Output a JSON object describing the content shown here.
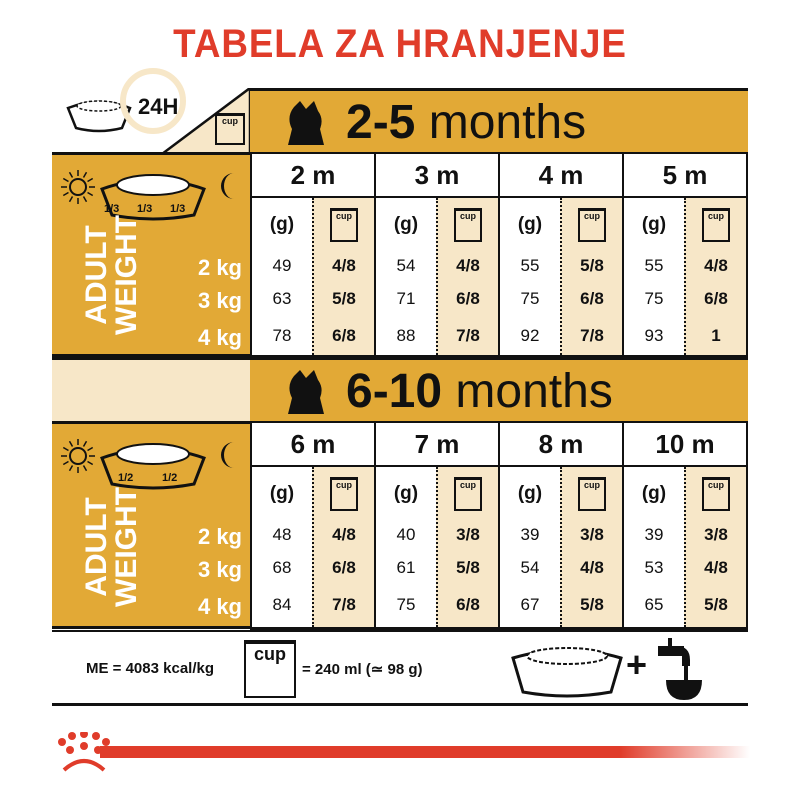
{
  "title": "TABELA ZA HRANJENJE",
  "daily_label": "24H",
  "cup_label": "cup",
  "grams_label": "(g)",
  "adult_weight": [
    "ADULT",
    "WEIGHT"
  ],
  "weights": [
    "2 kg",
    "3 kg",
    "4 kg"
  ],
  "colors": {
    "gold": "#E2A936",
    "cream": "#F7E7C8",
    "red": "#E03C2A"
  },
  "sections": [
    {
      "age_bold": "2-5",
      "age_rest": " months",
      "meal_fractions": [
        "1/3",
        "1/3",
        "1/3"
      ],
      "icon": "puppy-icon",
      "months": [
        {
          "label": "2 m",
          "grams": [
            "49",
            "63",
            "78"
          ],
          "cups": [
            "4/8",
            "5/8",
            "6/8"
          ]
        },
        {
          "label": "3 m",
          "grams": [
            "54",
            "71",
            "88"
          ],
          "cups": [
            "4/8",
            "6/8",
            "7/8"
          ]
        },
        {
          "label": "4 m",
          "grams": [
            "55",
            "75",
            "92"
          ],
          "cups": [
            "5/8",
            "6/8",
            "7/8"
          ]
        },
        {
          "label": "5 m",
          "grams": [
            "55",
            "75",
            "93"
          ],
          "cups": [
            "4/8",
            "6/8",
            "1"
          ]
        }
      ]
    },
    {
      "age_bold": "6-10",
      "age_rest": " months",
      "meal_fractions": [
        "1/2",
        "1/2"
      ],
      "icon": "dog-icon",
      "months": [
        {
          "label": "6 m",
          "grams": [
            "48",
            "68",
            "84"
          ],
          "cups": [
            "4/8",
            "6/8",
            "7/8"
          ]
        },
        {
          "label": "7 m",
          "grams": [
            "40",
            "61",
            "75"
          ],
          "cups": [
            "3/8",
            "5/8",
            "6/8"
          ]
        },
        {
          "label": "8 m",
          "grams": [
            "39",
            "54",
            "67"
          ],
          "cups": [
            "3/8",
            "4/8",
            "5/8"
          ]
        },
        {
          "label": "10 m",
          "grams": [
            "39",
            "53",
            "65"
          ],
          "cups": [
            "3/8",
            "4/8",
            "5/8"
          ]
        }
      ]
    }
  ],
  "footer": {
    "energy": "ME = 4083 kcal/kg",
    "cup_equiv": "= 240 ml (≃ 98 g)",
    "plus": "+"
  }
}
